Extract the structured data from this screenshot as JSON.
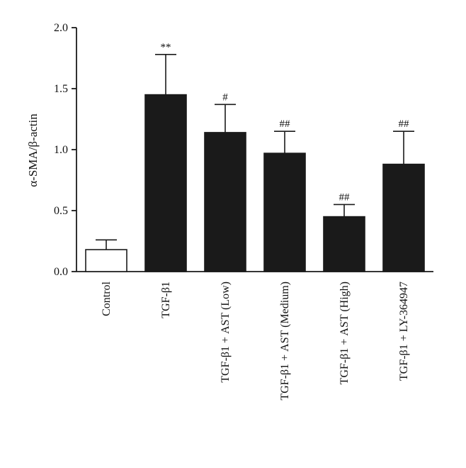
{
  "chart_data": {
    "type": "bar",
    "ylabel": "α-SMA/β-actin",
    "ylim": [
      0,
      2.0
    ],
    "yticks": [
      "0.0",
      "0.5",
      "1.0",
      "1.5",
      "2.0"
    ],
    "grid": false,
    "categories": [
      "Control",
      "TGF-β1",
      "TGF-β1 + AST (Low)",
      "TGF-β1 + AST (Medium)",
      "TGF-β1 + AST (High)",
      "TGF-β1 + LY-364947"
    ],
    "values": [
      0.18,
      1.45,
      1.14,
      0.97,
      0.45,
      0.88
    ],
    "errors": [
      0.08,
      0.33,
      0.23,
      0.18,
      0.1,
      0.27
    ],
    "annotations": [
      "",
      "**",
      "#",
      "##",
      "##",
      "##"
    ],
    "bar_colors": [
      "#ffffff",
      "#1a1a1a",
      "#1a1a1a",
      "#1a1a1a",
      "#1a1a1a",
      "#1a1a1a"
    ],
    "axis_color": "#1a1a1a"
  }
}
